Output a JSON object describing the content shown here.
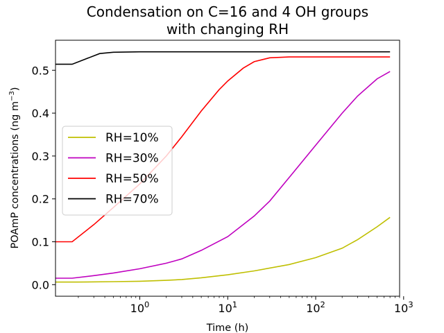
{
  "chart_data": {
    "type": "line",
    "title": "Condensation on C=16 and 4 OH groups",
    "subtitle": "with changing RH",
    "xlabel": "Time (h)",
    "ylabel": "POAmP concentrations (ng m",
    "ylabel_sup": "−3",
    "ylabel_tail": ")",
    "x_scale": "log",
    "xlim": [
      0.11,
      900
    ],
    "ylim": [
      -0.027,
      0.57
    ],
    "x_ticks": [
      {
        "value": 1,
        "base": "10",
        "exp": "0"
      },
      {
        "value": 10,
        "base": "10",
        "exp": "1"
      },
      {
        "value": 100,
        "base": "10",
        "exp": "2"
      },
      {
        "value": 1000,
        "base": "10",
        "exp": "3"
      }
    ],
    "y_ticks": [
      {
        "value": 0.0,
        "label": "0.0"
      },
      {
        "value": 0.1,
        "label": "0.1"
      },
      {
        "value": 0.2,
        "label": "0.2"
      },
      {
        "value": 0.3,
        "label": "0.3"
      },
      {
        "value": 0.4,
        "label": "0.4"
      },
      {
        "value": 0.5,
        "label": "0.5"
      }
    ],
    "grid": false,
    "legend_position": "center-left",
    "series": [
      {
        "name": "RH=10%",
        "color": "#bfbf00",
        "points": [
          [
            0.11,
            0.006
          ],
          [
            0.2,
            0.006
          ],
          [
            0.5,
            0.007
          ],
          [
            1,
            0.008
          ],
          [
            2,
            0.01
          ],
          [
            3,
            0.012
          ],
          [
            5,
            0.016
          ],
          [
            10,
            0.023
          ],
          [
            20,
            0.032
          ],
          [
            50,
            0.047
          ],
          [
            100,
            0.063
          ],
          [
            200,
            0.085
          ],
          [
            300,
            0.105
          ],
          [
            500,
            0.135
          ],
          [
            700,
            0.157
          ]
        ]
      },
      {
        "name": "RH=30%",
        "color": "#bf00bf",
        "points": [
          [
            0.11,
            0.015
          ],
          [
            0.17,
            0.015
          ],
          [
            0.3,
            0.021
          ],
          [
            0.5,
            0.027
          ],
          [
            1,
            0.037
          ],
          [
            2,
            0.05
          ],
          [
            3,
            0.06
          ],
          [
            5,
            0.08
          ],
          [
            10,
            0.112
          ],
          [
            20,
            0.16
          ],
          [
            30,
            0.195
          ],
          [
            50,
            0.25
          ],
          [
            100,
            0.325
          ],
          [
            200,
            0.4
          ],
          [
            300,
            0.44
          ],
          [
            500,
            0.48
          ],
          [
            700,
            0.497
          ]
        ]
      },
      {
        "name": "RH=50%",
        "color": "#ff0000",
        "points": [
          [
            0.11,
            0.1
          ],
          [
            0.17,
            0.1
          ],
          [
            0.3,
            0.14
          ],
          [
            0.5,
            0.18
          ],
          [
            1,
            0.235
          ],
          [
            2,
            0.3
          ],
          [
            3,
            0.345
          ],
          [
            5,
            0.405
          ],
          [
            8,
            0.455
          ],
          [
            10,
            0.475
          ],
          [
            15,
            0.505
          ],
          [
            20,
            0.52
          ],
          [
            30,
            0.529
          ],
          [
            50,
            0.531
          ],
          [
            100,
            0.531
          ],
          [
            700,
            0.531
          ]
        ]
      },
      {
        "name": "RH=70%",
        "color": "#000000",
        "points": [
          [
            0.11,
            0.514
          ],
          [
            0.17,
            0.514
          ],
          [
            0.35,
            0.539
          ],
          [
            0.5,
            0.542
          ],
          [
            1,
            0.543
          ],
          [
            10,
            0.543
          ],
          [
            100,
            0.543
          ],
          [
            700,
            0.543
          ]
        ]
      }
    ]
  }
}
